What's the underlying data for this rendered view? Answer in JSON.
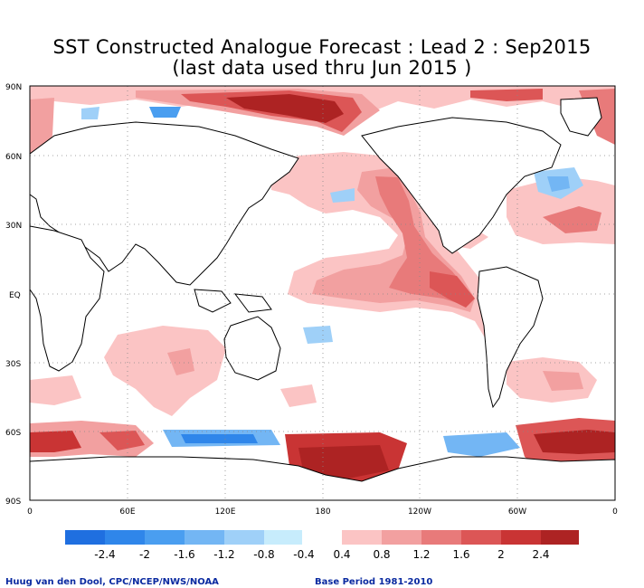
{
  "title_line1": "SST Constructed Analogue Forecast : Lead 2 : Sep2015",
  "title_line2": "(last data used thru Jun 2015 )",
  "footer_left": "Huug van den Dool, CPC/NCEP/NWS/NOAA",
  "footer_right": "Base Period 1981-2010",
  "lat_labels": [
    "90N",
    "60N",
    "30N",
    "EQ",
    "30S",
    "60S",
    "90S"
  ],
  "lon_labels": [
    "0",
    "60E",
    "120E",
    "180",
    "120W",
    "60W",
    "0"
  ],
  "colorbar": {
    "negative_colors": [
      "#1f6fe0",
      "#2f86ea",
      "#4a9ef0",
      "#73b6f4",
      "#9fd0f8",
      "#c7ecfc"
    ],
    "positive_colors": [
      "#fbc4c4",
      "#f2a0a0",
      "#e87a7a",
      "#dc5656",
      "#c93434",
      "#ad2323"
    ],
    "labels": [
      "-2.4",
      "-2",
      "-1.6",
      "-1.2",
      "-0.8",
      "-0.4",
      "0.4",
      "0.8",
      "1.2",
      "1.6",
      "2",
      "2.4"
    ]
  }
}
